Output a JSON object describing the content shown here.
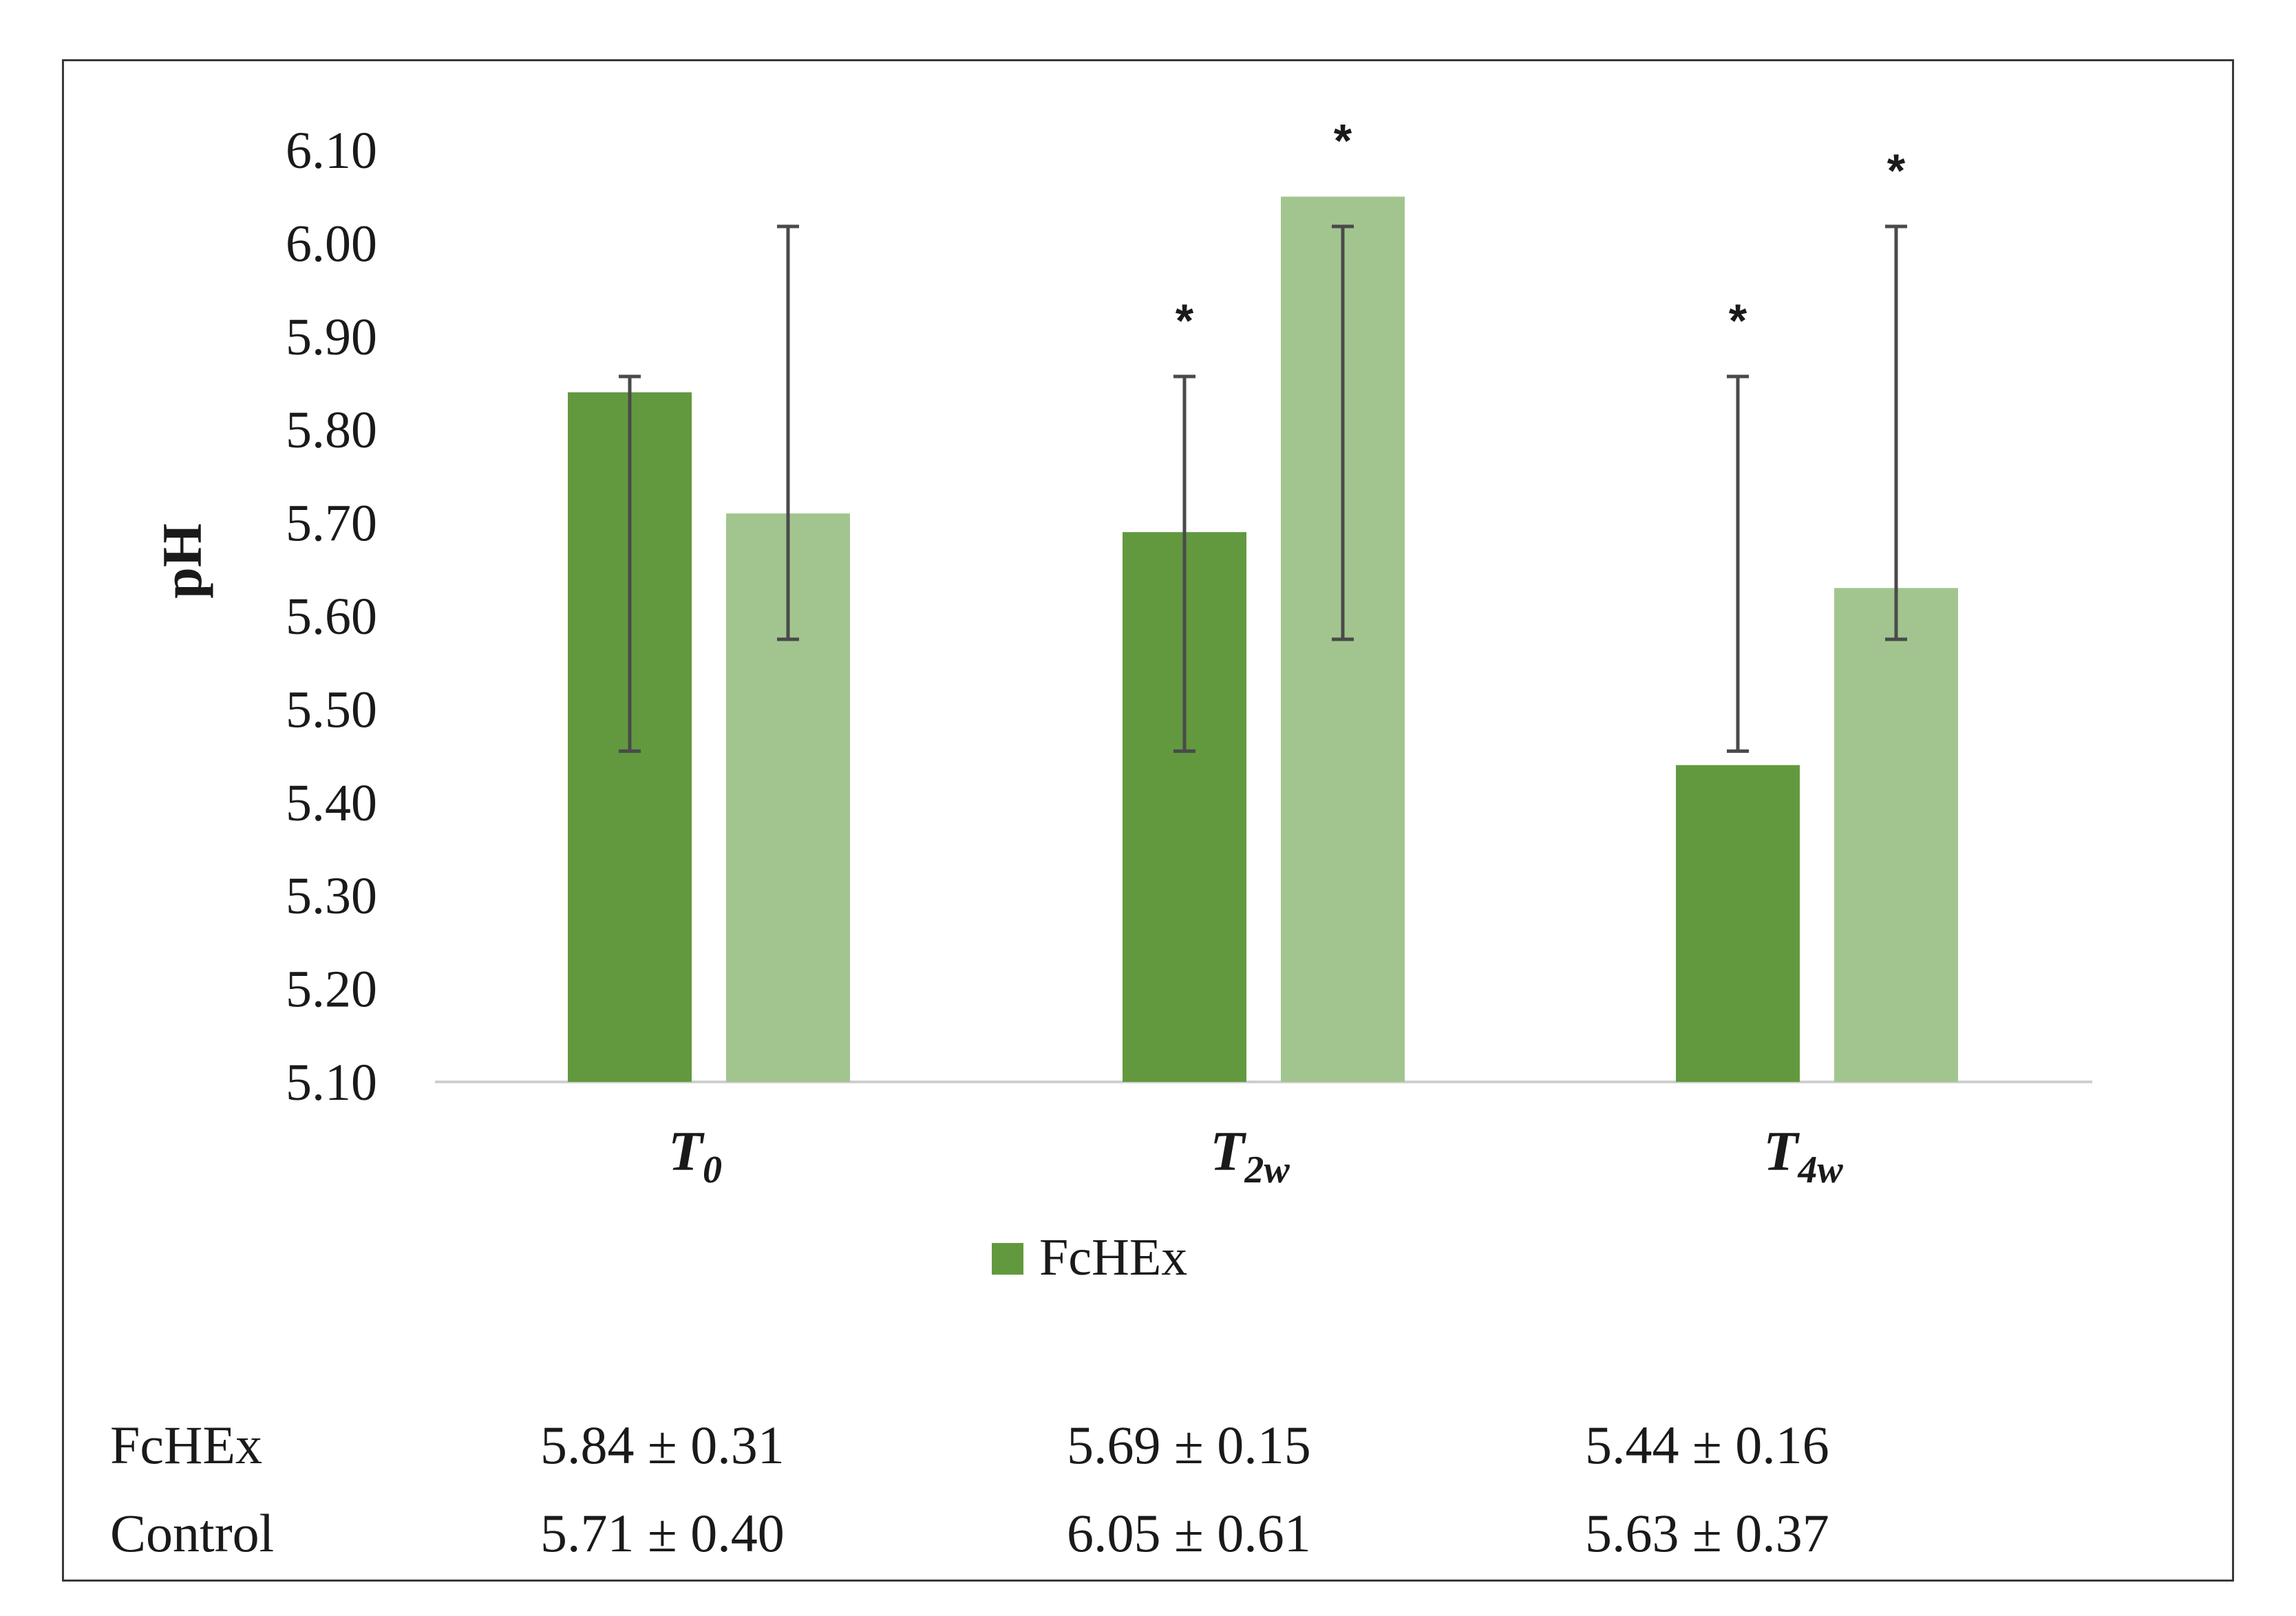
{
  "chart_data": {
    "type": "bar",
    "title": "",
    "xlabel": "",
    "ylabel": "pH",
    "ylim": [
      5.1,
      6.1
    ],
    "ytick_step": 0.1,
    "yticks": [
      "5.10",
      "5.20",
      "5.30",
      "5.40",
      "5.50",
      "5.60",
      "5.70",
      "5.80",
      "5.90",
      "6.00",
      "6.10"
    ],
    "categories": [
      {
        "base": "T",
        "sub": "0"
      },
      {
        "base": "T",
        "sub": "2w"
      },
      {
        "base": "T",
        "sub": "4w"
      }
    ],
    "series": [
      {
        "name": "FcHEx",
        "color": "#62993f",
        "values": [
          5.84,
          5.69,
          5.44
        ],
        "error_low": [
          5.455,
          5.455,
          5.455
        ],
        "error_high": [
          5.857,
          5.857,
          5.857
        ],
        "significant": [
          false,
          true,
          true
        ]
      },
      {
        "name": "Control",
        "color": "#a2c58f",
        "values": [
          5.71,
          6.05,
          5.63
        ],
        "error_low": [
          5.575,
          5.575,
          5.575
        ],
        "error_high": [
          6.018,
          6.018,
          6.018
        ],
        "significant": [
          false,
          true,
          true
        ]
      }
    ],
    "significance_marker": "*",
    "legend": [
      "FcHEx"
    ],
    "legend_position": "bottom-center",
    "grid": false
  },
  "summary_table": {
    "rows": [
      {
        "label": "FcHEx",
        "cells": [
          "5.84 ± 0.31",
          "5.69 ± 0.15",
          "5.44 ± 0.16"
        ]
      },
      {
        "label": "Control",
        "cells": [
          "5.71 ± 0.40",
          "6.05 ± 0.61",
          "5.63 ± 0.37"
        ]
      }
    ]
  },
  "colors": {
    "fchex": "#62993f",
    "control": "#a2c58f",
    "error_bar": "#4a4a4a",
    "axis": "#cfcfcf",
    "frame": "#3a3a3a"
  }
}
